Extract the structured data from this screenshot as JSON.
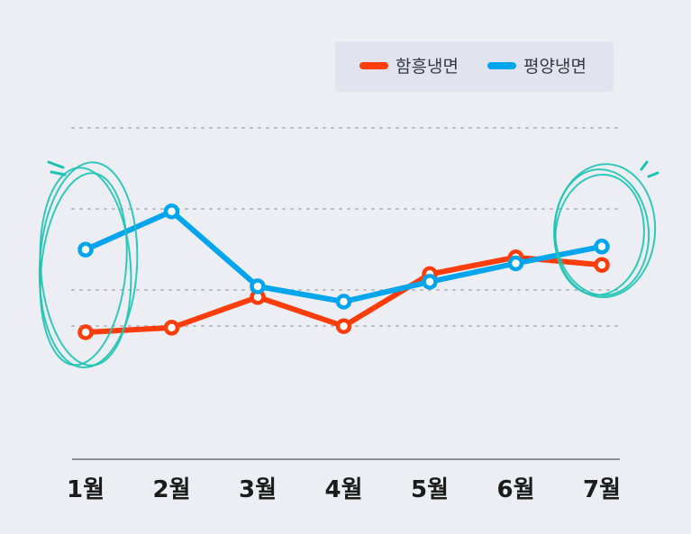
{
  "chart_data": {
    "type": "line",
    "title": "",
    "xlabel": "",
    "ylabel": "",
    "categories": [
      "1월",
      "2월",
      "3월",
      "4월",
      "5월",
      "6월",
      "7월"
    ],
    "ylim": [
      0,
      100
    ],
    "grid": true,
    "y_ticks_visible": false,
    "legend_position": "top-right",
    "series": [
      {
        "name": "함흥냉면",
        "color": "#ff3d0a",
        "values": [
          30,
          33,
          53,
          34,
          68,
          79,
          74
        ]
      },
      {
        "name": "평양냉면",
        "color": "#00a5ee",
        "values": [
          84,
          109,
          60,
          50,
          63,
          75,
          86
        ]
      }
    ],
    "highlight_color": "#1cc3b2",
    "highlighted_categories": [
      "1월",
      "7월"
    ]
  }
}
